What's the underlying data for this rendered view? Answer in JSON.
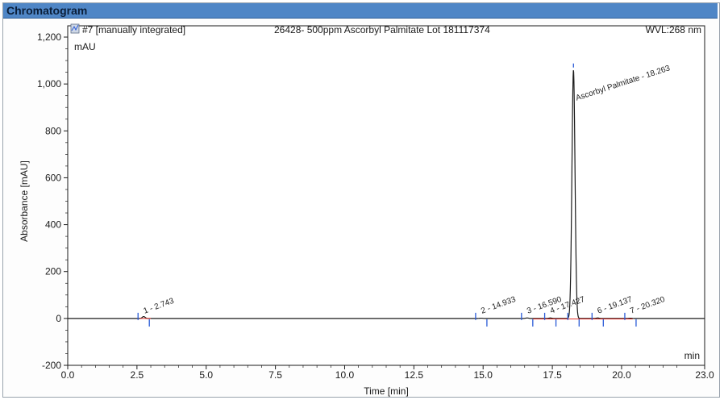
{
  "panel_title": "Chromatogram",
  "chart_data": {
    "type": "line",
    "header": {
      "injection": "#7 [manually integrated]",
      "sample": "26428- 500ppm Ascorbyl Palmitate Lot 181117374",
      "wavelength": "WVL:268 nm"
    },
    "unit_label": "mAU",
    "corner_label": "min",
    "xlabel": "Time [min]",
    "ylabel": "Absorbance [mAU]",
    "xlim": [
      0.0,
      23.0
    ],
    "ylim": [
      -200,
      1200
    ],
    "x_ticks": [
      "0.0",
      "2.5",
      "5.0",
      "7.5",
      "10.0",
      "12.5",
      "15.0",
      "17.5",
      "20.0",
      "23.0"
    ],
    "x_tick_values": [
      0.0,
      2.5,
      5.0,
      7.5,
      10.0,
      12.5,
      15.0,
      17.5,
      20.0,
      23.0
    ],
    "y_ticks": [
      "1,200",
      "1,000",
      "800",
      "600",
      "400",
      "200",
      "0",
      "-200"
    ],
    "y_tick_values": [
      1200,
      1000,
      800,
      600,
      400,
      200,
      0,
      -200
    ],
    "grid": false,
    "peaks": [
      {
        "label": "1 - 2.743",
        "rt": 2.743,
        "height": 8
      },
      {
        "label": "2 - 14.933",
        "rt": 14.933,
        "height": 1
      },
      {
        "label": "3 - 16.590",
        "rt": 16.59,
        "height": 2
      },
      {
        "label": "4 - 17.427",
        "rt": 17.427,
        "height": 2
      },
      {
        "label": "Ascorbyl Palmitate - 18.263",
        "rt": 18.263,
        "height": 1060
      },
      {
        "label": "6 - 19.137",
        "rt": 19.137,
        "height": 2
      },
      {
        "label": "7 - 20.320",
        "rt": 20.32,
        "height": 1
      }
    ],
    "colors": {
      "trace": "#1a1a1a",
      "baseline": "#e0302a",
      "marker": "#2a5bd7",
      "header_bar": "#4f86c6"
    }
  }
}
